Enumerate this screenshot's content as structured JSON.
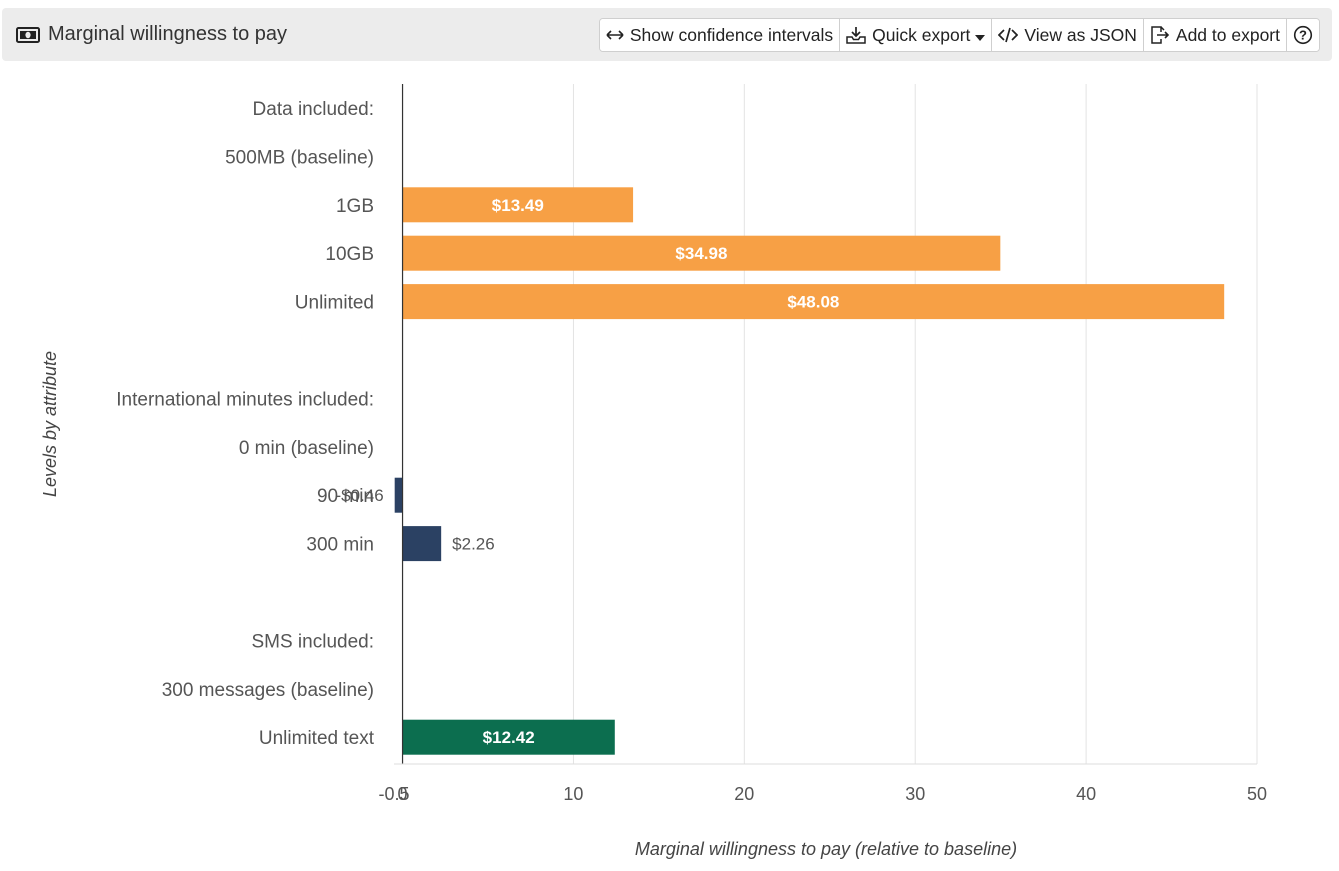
{
  "header": {
    "title": "Marginal willingness to pay",
    "title_icon": "money-icon",
    "buttons": [
      {
        "label": "Show confidence intervals",
        "icon": "arrows-horizontal-icon"
      },
      {
        "label": "Quick export",
        "icon": "download-tray-icon",
        "dropdown": true
      },
      {
        "label": "View as JSON",
        "icon": "code-icon"
      },
      {
        "label": "Add to export",
        "icon": "file-export-icon"
      },
      {
        "label": "",
        "icon": "help-icon"
      }
    ]
  },
  "chart_data": {
    "type": "bar",
    "orientation": "horizontal",
    "xlabel": "Marginal willingness to pay (relative to baseline)",
    "ylabel": "Levels by attribute",
    "xlim": [
      -0.5,
      50
    ],
    "x_ticks": [
      "-0.5",
      "0",
      "10",
      "20",
      "30",
      "40",
      "50"
    ],
    "grid": true,
    "rows": [
      {
        "label": "Data included:",
        "header": true
      },
      {
        "label": "500MB (baseline)",
        "value": null
      },
      {
        "label": "1GB",
        "value": 13.49,
        "value_label": "$13.49",
        "color": "#f7a045"
      },
      {
        "label": "10GB",
        "value": 34.98,
        "value_label": "$34.98",
        "color": "#f7a045"
      },
      {
        "label": "Unlimited",
        "value": 48.08,
        "value_label": "$48.08",
        "color": "#f7a045"
      },
      {
        "label": "",
        "spacer": true
      },
      {
        "label": "International minutes included:",
        "header": true
      },
      {
        "label": "0 min (baseline)",
        "value": null
      },
      {
        "label": "90 min",
        "value": -0.46,
        "value_label": "-$0.46",
        "color": "#2b4163"
      },
      {
        "label": "300 min",
        "value": 2.26,
        "value_label": "$2.26",
        "color": "#2b4163"
      },
      {
        "label": "",
        "spacer": true
      },
      {
        "label": "SMS included:",
        "header": true
      },
      {
        "label": "300 messages (baseline)",
        "value": null
      },
      {
        "label": "Unlimited text",
        "value": 12.42,
        "value_label": "$12.42",
        "color": "#0c6e4f"
      }
    ]
  }
}
